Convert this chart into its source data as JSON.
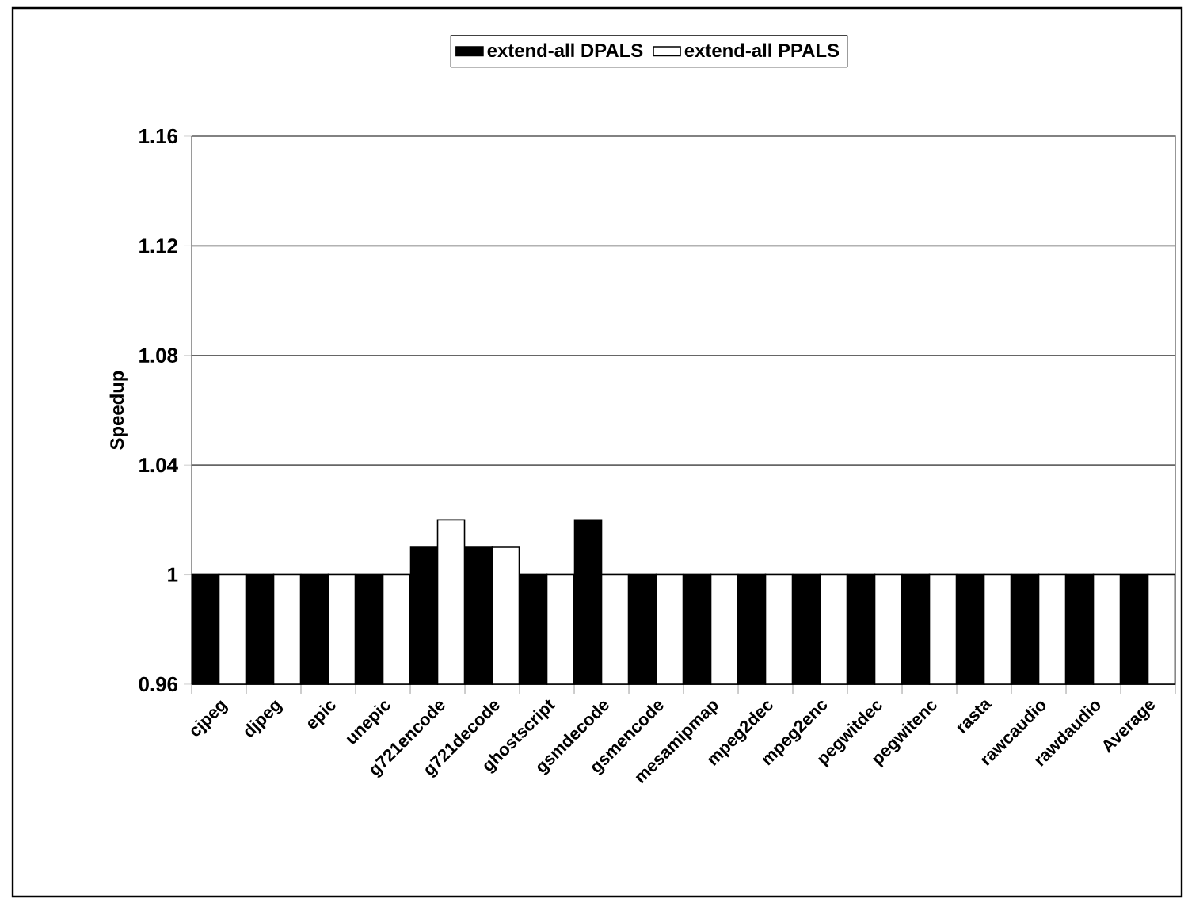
{
  "chart_data": {
    "type": "bar",
    "ylabel": "Speedup",
    "categories": [
      "cjpeg",
      "djpeg",
      "epic",
      "unepic",
      "g721encode",
      "g721decode",
      "ghostscript",
      "gsmdecode",
      "gsmencode",
      "mesamipmap",
      "mpeg2dec",
      "mpeg2enc",
      "pegwitdec",
      "pegwitenc",
      "rasta",
      "rawcaudio",
      "rawdaudio",
      "Average"
    ],
    "series": [
      {
        "name": "extend-all DPALS",
        "color": "#000000",
        "values": [
          1,
          1,
          1,
          1,
          1.01,
          1.01,
          1,
          1.02,
          1,
          1,
          1,
          1,
          1,
          1,
          1,
          1,
          1,
          1
        ]
      },
      {
        "name": "extend-all PPALS",
        "color": "#ffffff",
        "values": [
          1,
          1,
          1,
          1,
          1.02,
          1.01,
          1,
          1,
          1,
          1,
          1,
          1,
          1,
          1,
          1,
          1,
          1,
          1
        ]
      }
    ],
    "ylim": [
      0.96,
      1.16
    ],
    "yticks": [
      0.96,
      1,
      1.04,
      1.08,
      1.12,
      1.16
    ],
    "grid": "y",
    "legend": "top"
  }
}
